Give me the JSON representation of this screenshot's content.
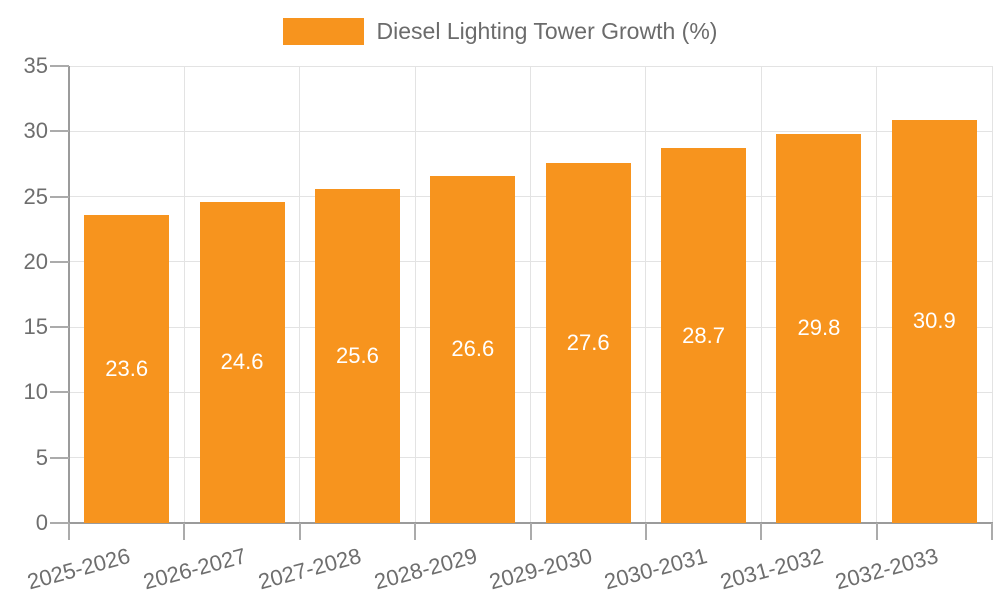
{
  "legend": {
    "label": "Diesel Lighting Tower Growth (%)"
  },
  "chart_data": {
    "type": "bar",
    "title": "Diesel Lighting Tower Growth (%)",
    "categories": [
      "2025-2026",
      "2026-2027",
      "2027-2028",
      "2028-2029",
      "2029-2030",
      "2030-2031",
      "2031-2032",
      "2032-2033"
    ],
    "values": [
      23.6,
      24.6,
      25.6,
      26.6,
      27.6,
      28.7,
      29.8,
      30.9
    ],
    "value_labels": [
      "23.6",
      "24.6",
      "25.6",
      "26.6",
      "27.6",
      "28.7",
      "29.8",
      "30.9"
    ],
    "xlabel": "",
    "ylabel": "",
    "ylim": [
      0,
      35
    ],
    "yticks": [
      0,
      5,
      10,
      15,
      20,
      25,
      30,
      35
    ],
    "grid": true,
    "legend_position": "top-center",
    "value_label_position": "inside-middle"
  },
  "colors": {
    "bar": "#F7941E",
    "axis": "#9b9b9b",
    "tick": "#ababab",
    "grid": "#e3e3e3",
    "axis_text": "#6e6e6e",
    "legend_text": "#6b6b6b",
    "value_text": "#ffffff",
    "background": "#ffffff"
  }
}
